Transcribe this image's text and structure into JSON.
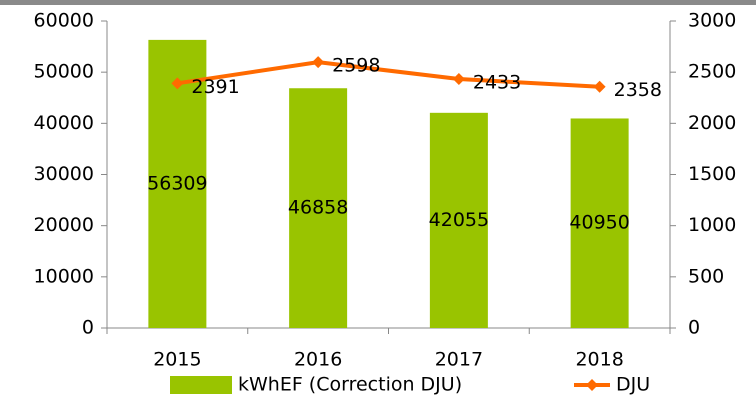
{
  "chart_data": {
    "type": "bar",
    "categories": [
      "2015",
      "2016",
      "2017",
      "2018"
    ],
    "series": [
      {
        "name": "kWhEF (Correction DJU)",
        "color": "#99c400",
        "values": [
          56309,
          46858,
          42055,
          40950
        ]
      },
      {
        "name": "DJU",
        "type": "line",
        "axis": "y2",
        "color": "#ff6a00",
        "values": [
          2391,
          2598,
          2433,
          2358
        ]
      }
    ],
    "ylim": [
      0,
      60000
    ],
    "yticks": [
      0,
      10000,
      20000,
      30000,
      40000,
      50000,
      60000
    ],
    "y2lim": [
      0,
      3000
    ],
    "y2ticks": [
      0,
      500,
      1000,
      1500,
      2000,
      2500,
      3000
    ],
    "legend": "bottom"
  }
}
